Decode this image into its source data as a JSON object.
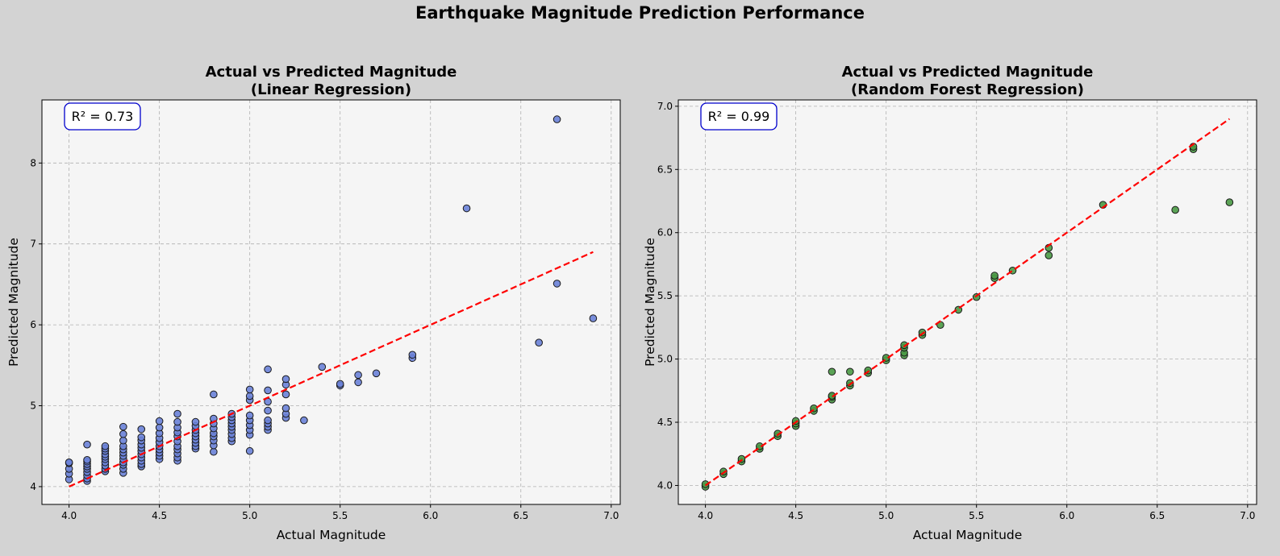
{
  "suptitle": "Earthquake Magnitude Prediction Performance",
  "colors": {
    "background": "#d3d3d3",
    "plot_bg": "#f5f5f5",
    "fit_line": "#ff0000",
    "annotation_border": "#0000cd"
  },
  "chart_data": [
    {
      "type": "scatter",
      "title_line1": "Actual vs Predicted Magnitude",
      "title_line2": "(Linear Regression)",
      "xlabel": "Actual Magnitude",
      "ylabel": "Predicted Magnitude",
      "xlim": [
        3.85,
        7.05
      ],
      "ylim": [
        3.78,
        8.78
      ],
      "xticks": [
        4.0,
        4.5,
        5.0,
        5.5,
        6.0,
        6.5,
        7.0
      ],
      "xtick_labels": [
        "4.0",
        "4.5",
        "5.0",
        "5.5",
        "6.0",
        "6.5",
        "7.0"
      ],
      "yticks": [
        4,
        5,
        6,
        7,
        8
      ],
      "ytick_labels": [
        "4",
        "5",
        "6",
        "7",
        "8"
      ],
      "grid": true,
      "annotation": "R² = 0.73",
      "point_color": "#6a82d8",
      "fit_line": {
        "x": [
          4.0,
          6.9
        ],
        "y": [
          4.0,
          6.9
        ]
      },
      "points": [
        [
          4.0,
          4.09
        ],
        [
          4.0,
          4.16
        ],
        [
          4.0,
          4.22
        ],
        [
          4.0,
          4.29
        ],
        [
          4.0,
          4.3
        ],
        [
          4.1,
          4.07
        ],
        [
          4.1,
          4.1
        ],
        [
          4.1,
          4.14
        ],
        [
          4.1,
          4.18
        ],
        [
          4.1,
          4.22
        ],
        [
          4.1,
          4.25
        ],
        [
          4.1,
          4.28
        ],
        [
          4.1,
          4.31
        ],
        [
          4.1,
          4.33
        ],
        [
          4.1,
          4.52
        ],
        [
          4.2,
          4.19
        ],
        [
          4.2,
          4.22
        ],
        [
          4.2,
          4.26
        ],
        [
          4.2,
          4.3
        ],
        [
          4.2,
          4.34
        ],
        [
          4.2,
          4.37
        ],
        [
          4.2,
          4.4
        ],
        [
          4.2,
          4.44
        ],
        [
          4.2,
          4.47
        ],
        [
          4.2,
          4.5
        ],
        [
          4.3,
          4.17
        ],
        [
          4.3,
          4.22
        ],
        [
          4.3,
          4.27
        ],
        [
          4.3,
          4.3
        ],
        [
          4.3,
          4.34
        ],
        [
          4.3,
          4.38
        ],
        [
          4.3,
          4.42
        ],
        [
          4.3,
          4.46
        ],
        [
          4.3,
          4.5
        ],
        [
          4.3,
          4.57
        ],
        [
          4.3,
          4.65
        ],
        [
          4.3,
          4.74
        ],
        [
          4.4,
          4.25
        ],
        [
          4.4,
          4.28
        ],
        [
          4.4,
          4.32
        ],
        [
          4.4,
          4.36
        ],
        [
          4.4,
          4.4
        ],
        [
          4.4,
          4.44
        ],
        [
          4.4,
          4.48
        ],
        [
          4.4,
          4.52
        ],
        [
          4.4,
          4.57
        ],
        [
          4.4,
          4.61
        ],
        [
          4.4,
          4.71
        ],
        [
          4.5,
          4.34
        ],
        [
          4.5,
          4.38
        ],
        [
          4.5,
          4.42
        ],
        [
          4.5,
          4.46
        ],
        [
          4.5,
          4.5
        ],
        [
          4.5,
          4.55
        ],
        [
          4.5,
          4.6
        ],
        [
          4.5,
          4.66
        ],
        [
          4.5,
          4.73
        ],
        [
          4.5,
          4.81
        ],
        [
          4.6,
          4.32
        ],
        [
          4.6,
          4.36
        ],
        [
          4.6,
          4.41
        ],
        [
          4.6,
          4.46
        ],
        [
          4.6,
          4.5
        ],
        [
          4.6,
          4.56
        ],
        [
          4.6,
          4.62
        ],
        [
          4.6,
          4.67
        ],
        [
          4.6,
          4.73
        ],
        [
          4.6,
          4.8
        ],
        [
          4.6,
          4.9
        ],
        [
          4.7,
          4.47
        ],
        [
          4.7,
          4.5
        ],
        [
          4.7,
          4.54
        ],
        [
          4.7,
          4.58
        ],
        [
          4.7,
          4.62
        ],
        [
          4.7,
          4.66
        ],
        [
          4.7,
          4.7
        ],
        [
          4.7,
          4.75
        ],
        [
          4.7,
          4.8
        ],
        [
          4.8,
          4.43
        ],
        [
          4.8,
          4.51
        ],
        [
          4.8,
          4.57
        ],
        [
          4.8,
          4.62
        ],
        [
          4.8,
          4.66
        ],
        [
          4.8,
          4.72
        ],
        [
          4.8,
          4.78
        ],
        [
          4.8,
          4.84
        ],
        [
          4.8,
          5.14
        ],
        [
          4.9,
          4.56
        ],
        [
          4.9,
          4.6
        ],
        [
          4.9,
          4.65
        ],
        [
          4.9,
          4.7
        ],
        [
          4.9,
          4.74
        ],
        [
          4.9,
          4.78
        ],
        [
          4.9,
          4.82
        ],
        [
          4.9,
          4.86
        ],
        [
          4.9,
          4.9
        ],
        [
          5.0,
          4.44
        ],
        [
          5.0,
          4.64
        ],
        [
          5.0,
          4.7
        ],
        [
          5.0,
          4.76
        ],
        [
          5.0,
          4.82
        ],
        [
          5.0,
          4.88
        ],
        [
          5.0,
          5.07
        ],
        [
          5.0,
          5.12
        ],
        [
          5.0,
          5.2
        ],
        [
          5.1,
          4.7
        ],
        [
          5.1,
          4.74
        ],
        [
          5.1,
          4.78
        ],
        [
          5.1,
          4.82
        ],
        [
          5.1,
          4.94
        ],
        [
          5.1,
          5.05
        ],
        [
          5.1,
          5.19
        ],
        [
          5.1,
          5.45
        ],
        [
          5.2,
          4.85
        ],
        [
          5.2,
          4.9
        ],
        [
          5.2,
          4.97
        ],
        [
          5.2,
          5.14
        ],
        [
          5.2,
          5.26
        ],
        [
          5.2,
          5.33
        ],
        [
          5.3,
          4.82
        ],
        [
          5.4,
          5.48
        ],
        [
          5.5,
          5.25
        ],
        [
          5.5,
          5.27
        ],
        [
          5.6,
          5.29
        ],
        [
          5.6,
          5.38
        ],
        [
          5.7,
          5.4
        ],
        [
          5.9,
          5.59
        ],
        [
          5.9,
          5.63
        ],
        [
          6.2,
          7.44
        ],
        [
          6.6,
          5.78
        ],
        [
          6.7,
          8.54
        ],
        [
          6.7,
          6.51
        ],
        [
          6.9,
          6.08
        ]
      ]
    },
    {
      "type": "scatter",
      "title_line1": "Actual vs Predicted Magnitude",
      "title_line2": "(Random Forest Regression)",
      "xlabel": "Actual Magnitude",
      "ylabel": "Predicted Magnitude",
      "xlim": [
        3.85,
        7.05
      ],
      "ylim": [
        3.85,
        7.05
      ],
      "xticks": [
        4.0,
        4.5,
        5.0,
        5.5,
        6.0,
        6.5,
        7.0
      ],
      "xtick_labels": [
        "4.0",
        "4.5",
        "5.0",
        "5.5",
        "6.0",
        "6.5",
        "7.0"
      ],
      "yticks": [
        4.0,
        4.5,
        5.0,
        5.5,
        6.0,
        6.5,
        7.0
      ],
      "ytick_labels": [
        "4.0",
        "4.5",
        "5.0",
        "5.5",
        "6.0",
        "6.5",
        "7.0"
      ],
      "grid": true,
      "annotation": "R² = 0.99",
      "point_color": "#4a9a45",
      "fit_line": {
        "x": [
          4.0,
          6.9
        ],
        "y": [
          4.0,
          6.9
        ]
      },
      "points": [
        [
          4.0,
          3.99
        ],
        [
          4.0,
          4.01
        ],
        [
          4.1,
          4.09
        ],
        [
          4.1,
          4.11
        ],
        [
          4.2,
          4.19
        ],
        [
          4.2,
          4.21
        ],
        [
          4.3,
          4.29
        ],
        [
          4.3,
          4.31
        ],
        [
          4.4,
          4.39
        ],
        [
          4.4,
          4.41
        ],
        [
          4.5,
          4.47
        ],
        [
          4.5,
          4.49
        ],
        [
          4.5,
          4.51
        ],
        [
          4.6,
          4.59
        ],
        [
          4.6,
          4.61
        ],
        [
          4.7,
          4.68
        ],
        [
          4.7,
          4.7
        ],
        [
          4.7,
          4.71
        ],
        [
          4.7,
          4.9
        ],
        [
          4.8,
          4.79
        ],
        [
          4.8,
          4.81
        ],
        [
          4.8,
          4.9
        ],
        [
          4.9,
          4.89
        ],
        [
          4.9,
          4.91
        ],
        [
          5.0,
          4.99
        ],
        [
          5.0,
          5.01
        ],
        [
          5.1,
          5.03
        ],
        [
          5.1,
          5.05
        ],
        [
          5.1,
          5.09
        ],
        [
          5.1,
          5.11
        ],
        [
          5.2,
          5.19
        ],
        [
          5.2,
          5.21
        ],
        [
          5.3,
          5.27
        ],
        [
          5.4,
          5.39
        ],
        [
          5.5,
          5.49
        ],
        [
          5.6,
          5.64
        ],
        [
          5.6,
          5.66
        ],
        [
          5.7,
          5.7
        ],
        [
          5.9,
          5.82
        ],
        [
          5.9,
          5.88
        ],
        [
          6.2,
          6.22
        ],
        [
          6.6,
          6.18
        ],
        [
          6.7,
          6.66
        ],
        [
          6.7,
          6.68
        ],
        [
          6.9,
          6.24
        ]
      ]
    }
  ]
}
